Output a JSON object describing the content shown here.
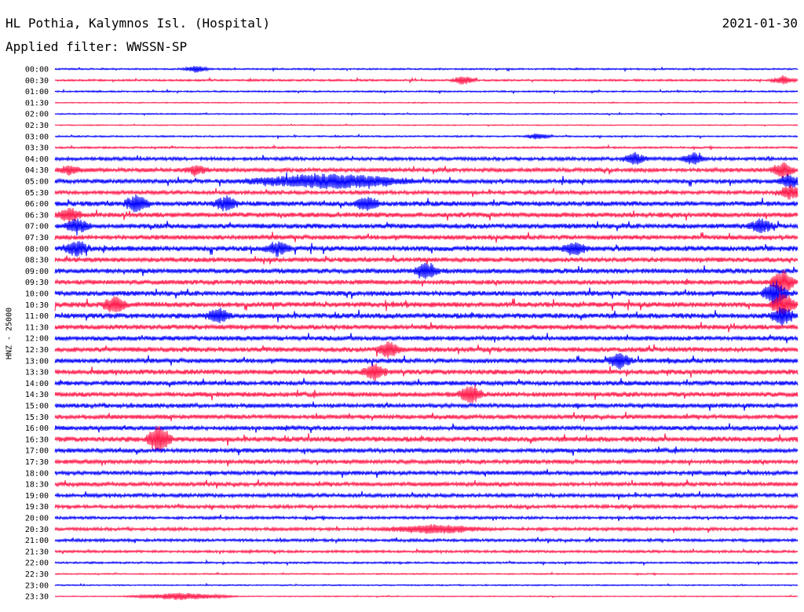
{
  "header": {
    "station": "HL Pothia, Kalymnos Isl. (Hospital)",
    "date": "2021-01-30",
    "filter": "Applied filter: WWSSN-SP"
  },
  "axis": {
    "ylabel": "HNZ - 25000"
  },
  "chart_data": {
    "type": "line",
    "title": "HL Pothia, Kalymnos Isl. (Hospital)",
    "subtitle": "Applied filter: WWSSN-SP",
    "ylabel": "HNZ - 25000",
    "row_interval_minutes": 30,
    "colors": [
      "#0000ff",
      "#ff1a4b"
    ],
    "rows": [
      {
        "label": "00:00",
        "activity": 0.25
      },
      {
        "label": "00:30",
        "activity": 0.3
      },
      {
        "label": "01:00",
        "activity": 0.25
      },
      {
        "label": "01:30",
        "activity": 0.15
      },
      {
        "label": "02:00",
        "activity": 0.2
      },
      {
        "label": "02:30",
        "activity": 0.15
      },
      {
        "label": "03:00",
        "activity": 0.25
      },
      {
        "label": "03:30",
        "activity": 0.3
      },
      {
        "label": "04:00",
        "activity": 0.55
      },
      {
        "label": "04:30",
        "activity": 0.65
      },
      {
        "label": "05:00",
        "activity": 0.7
      },
      {
        "label": "05:30",
        "activity": 0.6
      },
      {
        "label": "06:00",
        "activity": 0.8
      },
      {
        "label": "06:30",
        "activity": 0.8
      },
      {
        "label": "07:00",
        "activity": 0.8
      },
      {
        "label": "07:30",
        "activity": 0.75
      },
      {
        "label": "08:00",
        "activity": 0.85
      },
      {
        "label": "08:30",
        "activity": 0.75
      },
      {
        "label": "09:00",
        "activity": 0.8
      },
      {
        "label": "09:30",
        "activity": 0.75
      },
      {
        "label": "10:00",
        "activity": 0.8
      },
      {
        "label": "10:30",
        "activity": 0.85
      },
      {
        "label": "11:00",
        "activity": 0.85
      },
      {
        "label": "11:30",
        "activity": 0.8
      },
      {
        "label": "12:00",
        "activity": 0.75
      },
      {
        "label": "12:30",
        "activity": 0.8
      },
      {
        "label": "13:00",
        "activity": 0.75
      },
      {
        "label": "13:30",
        "activity": 0.8
      },
      {
        "label": "14:00",
        "activity": 0.75
      },
      {
        "label": "14:30",
        "activity": 0.8
      },
      {
        "label": "15:00",
        "activity": 0.7
      },
      {
        "label": "15:30",
        "activity": 0.7
      },
      {
        "label": "16:00",
        "activity": 0.7
      },
      {
        "label": "16:30",
        "activity": 0.85
      },
      {
        "label": "17:00",
        "activity": 0.7
      },
      {
        "label": "17:30",
        "activity": 0.65
      },
      {
        "label": "18:00",
        "activity": 0.65
      },
      {
        "label": "18:30",
        "activity": 0.65
      },
      {
        "label": "19:00",
        "activity": 0.6
      },
      {
        "label": "19:30",
        "activity": 0.55
      },
      {
        "label": "20:00",
        "activity": 0.45
      },
      {
        "label": "20:30",
        "activity": 0.5
      },
      {
        "label": "21:00",
        "activity": 0.45
      },
      {
        "label": "21:30",
        "activity": 0.4
      },
      {
        "label": "22:00",
        "activity": 0.3
      },
      {
        "label": "22:30",
        "activity": 0.2
      },
      {
        "label": "23:00",
        "activity": 0.2
      },
      {
        "label": "23:30",
        "activity": 0.15
      }
    ],
    "events": [
      {
        "row": 0,
        "t": 0.19,
        "amp": 0.5
      },
      {
        "row": 1,
        "t": 0.55,
        "amp": 0.6
      },
      {
        "row": 1,
        "t": 0.98,
        "amp": 0.6
      },
      {
        "row": 6,
        "t": 0.65,
        "amp": 0.4
      },
      {
        "row": 8,
        "t": 0.78,
        "amp": 0.8
      },
      {
        "row": 8,
        "t": 0.86,
        "amp": 0.8
      },
      {
        "row": 9,
        "t": 0.02,
        "amp": 0.6
      },
      {
        "row": 9,
        "t": 0.19,
        "amp": 0.6
      },
      {
        "row": 9,
        "t": 0.98,
        "amp": 1.0
      },
      {
        "row": 10,
        "t": 0.37,
        "amp": 1.0,
        "width": 0.13
      },
      {
        "row": 10,
        "t": 0.99,
        "amp": 0.9
      },
      {
        "row": 11,
        "t": 0.99,
        "amp": 1.0
      },
      {
        "row": 12,
        "t": 0.11,
        "amp": 1.2
      },
      {
        "row": 12,
        "t": 0.23,
        "amp": 1.0
      },
      {
        "row": 12,
        "t": 0.42,
        "amp": 1.0
      },
      {
        "row": 13,
        "t": 0.02,
        "amp": 0.9
      },
      {
        "row": 14,
        "t": 0.03,
        "amp": 1.0
      },
      {
        "row": 14,
        "t": 0.95,
        "amp": 0.9
      },
      {
        "row": 16,
        "t": 0.03,
        "amp": 1.0
      },
      {
        "row": 16,
        "t": 0.3,
        "amp": 0.9
      },
      {
        "row": 16,
        "t": 0.7,
        "amp": 0.9
      },
      {
        "row": 18,
        "t": 0.5,
        "amp": 1.1
      },
      {
        "row": 19,
        "t": 0.98,
        "amp": 1.6
      },
      {
        "row": 20,
        "t": 0.97,
        "amp": 1.8
      },
      {
        "row": 21,
        "t": 0.08,
        "amp": 1.2
      },
      {
        "row": 21,
        "t": 0.98,
        "amp": 1.8
      },
      {
        "row": 22,
        "t": 0.22,
        "amp": 1.0
      },
      {
        "row": 22,
        "t": 0.98,
        "amp": 1.2
      },
      {
        "row": 25,
        "t": 0.45,
        "amp": 1.0
      },
      {
        "row": 26,
        "t": 0.76,
        "amp": 1.0
      },
      {
        "row": 27,
        "t": 0.43,
        "amp": 1.1
      },
      {
        "row": 29,
        "t": 0.56,
        "amp": 1.2
      },
      {
        "row": 33,
        "t": 0.14,
        "amp": 2.0
      },
      {
        "row": 41,
        "t": 0.51,
        "amp": 0.6,
        "width": 0.08
      },
      {
        "row": 47,
        "t": 0.17,
        "amp": 0.5,
        "width": 0.08
      }
    ]
  }
}
